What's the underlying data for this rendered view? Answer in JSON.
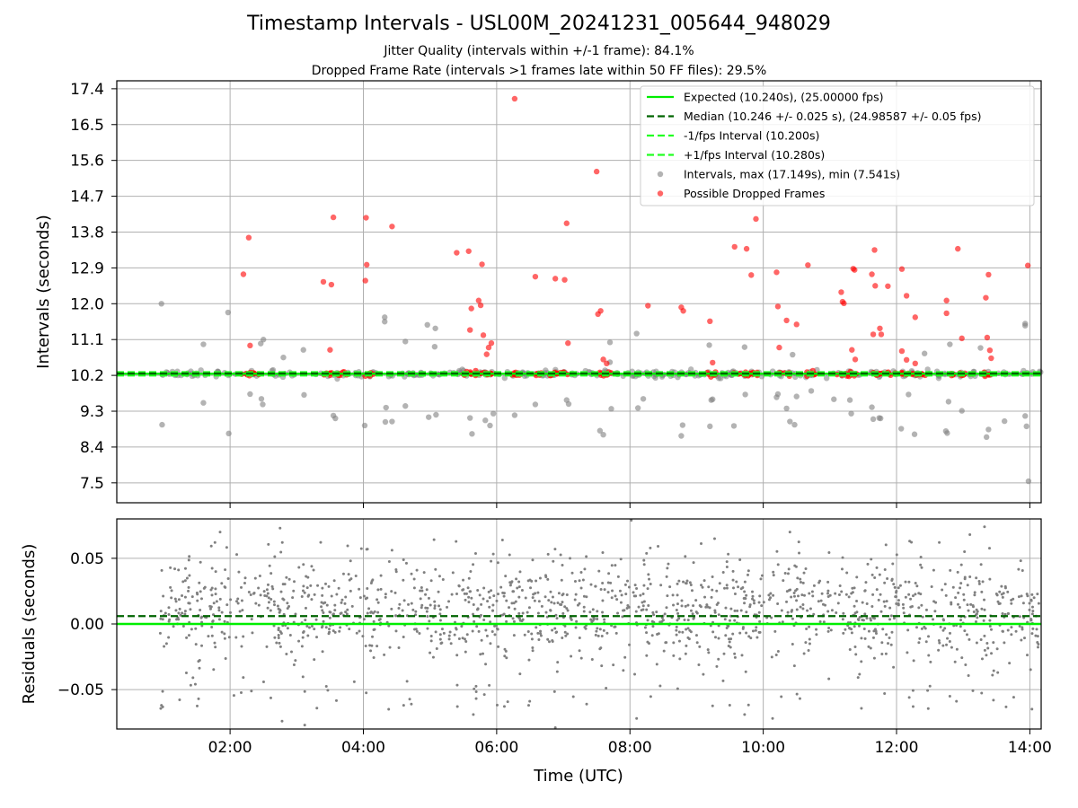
{
  "header": {
    "title": "Timestamp Intervals - USL00M_20241231_005644_948029",
    "subtitle_jitter": "Jitter Quality (intervals within +/-1 frame): 84.1%",
    "subtitle_dropped": "Dropped Frame Rate (intervals >1 frames late within 50 FF files): 29.5%"
  },
  "colors": {
    "expected": "#00ee00",
    "median": "#006400",
    "interval_bounds": "#22ff22",
    "intervals": "#808080",
    "dropped": "#ff0000",
    "residuals": "#808080",
    "grid": "#b0b0b0"
  },
  "chart_data": [
    {
      "type": "scatter",
      "ylabel": "Intervals (seconds)",
      "xlim_hours": [
        0.3,
        14.17
      ],
      "ylim": [
        7.0,
        17.6
      ],
      "yticks": [
        "7.5",
        "8.4",
        "9.3",
        "10.2",
        "11.1",
        "12.0",
        "12.9",
        "13.8",
        "14.7",
        "15.6",
        "16.5",
        "17.4"
      ],
      "grid": true,
      "legend_position": "top-right",
      "legend": [
        "Expected (10.240s), (25.00000 fps)",
        "Median (10.246 +/- 0.025 s), (24.98587 +/- 0.05 fps)",
        "-1/fps Interval (10.200s)",
        "+1/fps Interval (10.280s)",
        "Intervals, max (17.149s), min (7.541s)",
        "Possible Dropped Frames"
      ],
      "reference_lines": {
        "expected": 10.24,
        "median": 10.246,
        "minus_1_fps": 10.2,
        "plus_1_fps": 10.28
      },
      "time_range_hours": [
        0.95,
        14.17
      ],
      "dropped_frames": [
        {
          "x": 2.2,
          "y": 12.74
        },
        {
          "x": 2.28,
          "y": 13.66
        },
        {
          "x": 2.3,
          "y": 10.95
        },
        {
          "x": 3.4,
          "y": 12.55
        },
        {
          "x": 3.5,
          "y": 10.84
        },
        {
          "x": 3.52,
          "y": 12.48
        },
        {
          "x": 3.55,
          "y": 14.17
        },
        {
          "x": 4.03,
          "y": 12.58
        },
        {
          "x": 4.04,
          "y": 14.16
        },
        {
          "x": 4.05,
          "y": 12.98
        },
        {
          "x": 4.43,
          "y": 13.94
        },
        {
          "x": 5.4,
          "y": 13.28
        },
        {
          "x": 5.58,
          "y": 13.32
        },
        {
          "x": 5.6,
          "y": 11.34
        },
        {
          "x": 5.62,
          "y": 11.88
        },
        {
          "x": 5.73,
          "y": 12.08
        },
        {
          "x": 5.76,
          "y": 11.96
        },
        {
          "x": 5.78,
          "y": 12.99
        },
        {
          "x": 5.8,
          "y": 11.21
        },
        {
          "x": 5.85,
          "y": 10.73
        },
        {
          "x": 5.88,
          "y": 10.9
        },
        {
          "x": 5.92,
          "y": 11.01
        },
        {
          "x": 6.27,
          "y": 17.15
        },
        {
          "x": 6.58,
          "y": 12.68
        },
        {
          "x": 6.88,
          "y": 12.63
        },
        {
          "x": 7.02,
          "y": 12.6
        },
        {
          "x": 7.05,
          "y": 14.02
        },
        {
          "x": 7.07,
          "y": 11.01
        },
        {
          "x": 7.5,
          "y": 15.32
        },
        {
          "x": 7.52,
          "y": 11.74
        },
        {
          "x": 7.56,
          "y": 11.82
        },
        {
          "x": 7.6,
          "y": 10.6
        },
        {
          "x": 7.65,
          "y": 10.5
        },
        {
          "x": 8.27,
          "y": 11.95
        },
        {
          "x": 8.77,
          "y": 11.91
        },
        {
          "x": 8.8,
          "y": 11.82
        },
        {
          "x": 9.2,
          "y": 11.56
        },
        {
          "x": 9.24,
          "y": 10.52
        },
        {
          "x": 9.57,
          "y": 13.43
        },
        {
          "x": 9.75,
          "y": 13.38
        },
        {
          "x": 9.82,
          "y": 12.72
        },
        {
          "x": 9.89,
          "y": 14.13
        },
        {
          "x": 10.2,
          "y": 12.79
        },
        {
          "x": 10.22,
          "y": 11.93
        },
        {
          "x": 10.24,
          "y": 10.9
        },
        {
          "x": 10.35,
          "y": 11.58
        },
        {
          "x": 10.5,
          "y": 11.48
        },
        {
          "x": 10.67,
          "y": 12.97
        },
        {
          "x": 11.17,
          "y": 12.29
        },
        {
          "x": 11.19,
          "y": 12.05
        },
        {
          "x": 11.21,
          "y": 12.01
        },
        {
          "x": 11.33,
          "y": 10.84
        },
        {
          "x": 11.35,
          "y": 12.88
        },
        {
          "x": 11.37,
          "y": 12.85
        },
        {
          "x": 11.38,
          "y": 10.6
        },
        {
          "x": 11.63,
          "y": 12.74
        },
        {
          "x": 11.65,
          "y": 11.23
        },
        {
          "x": 11.67,
          "y": 13.35
        },
        {
          "x": 11.68,
          "y": 12.45
        },
        {
          "x": 11.75,
          "y": 11.38
        },
        {
          "x": 11.77,
          "y": 11.23
        },
        {
          "x": 11.87,
          "y": 12.44
        },
        {
          "x": 12.08,
          "y": 12.87
        },
        {
          "x": 12.08,
          "y": 10.81
        },
        {
          "x": 12.15,
          "y": 12.2
        },
        {
          "x": 12.15,
          "y": 10.59
        },
        {
          "x": 12.28,
          "y": 11.66
        },
        {
          "x": 12.28,
          "y": 10.5
        },
        {
          "x": 12.75,
          "y": 12.08
        },
        {
          "x": 12.75,
          "y": 11.76
        },
        {
          "x": 12.92,
          "y": 13.38
        },
        {
          "x": 12.98,
          "y": 11.13
        },
        {
          "x": 13.34,
          "y": 12.15
        },
        {
          "x": 13.36,
          "y": 11.15
        },
        {
          "x": 13.38,
          "y": 12.73
        },
        {
          "x": 13.4,
          "y": 10.83
        },
        {
          "x": 13.42,
          "y": 10.63
        },
        {
          "x": 13.97,
          "y": 12.96
        }
      ],
      "intervals_outliers": [
        {
          "x": 0.97,
          "y": 12.0
        },
        {
          "x": 0.98,
          "y": 8.96
        },
        {
          "x": 1.6,
          "y": 9.51
        },
        {
          "x": 1.6,
          "y": 10.98
        },
        {
          "x": 1.97,
          "y": 11.78
        },
        {
          "x": 1.98,
          "y": 8.74
        },
        {
          "x": 2.3,
          "y": 9.73
        },
        {
          "x": 2.46,
          "y": 11.0
        },
        {
          "x": 2.47,
          "y": 9.61
        },
        {
          "x": 2.49,
          "y": 9.47
        },
        {
          "x": 2.5,
          "y": 11.1
        },
        {
          "x": 2.8,
          "y": 10.65
        },
        {
          "x": 3.1,
          "y": 10.84
        },
        {
          "x": 3.11,
          "y": 9.71
        },
        {
          "x": 3.55,
          "y": 9.19
        },
        {
          "x": 3.58,
          "y": 9.12
        },
        {
          "x": 4.02,
          "y": 8.94
        },
        {
          "x": 4.32,
          "y": 11.55
        },
        {
          "x": 4.32,
          "y": 11.66
        },
        {
          "x": 4.33,
          "y": 9.03
        },
        {
          "x": 4.34,
          "y": 9.39
        },
        {
          "x": 4.43,
          "y": 9.04
        },
        {
          "x": 4.63,
          "y": 11.05
        },
        {
          "x": 4.63,
          "y": 9.43
        },
        {
          "x": 4.96,
          "y": 11.47
        },
        {
          "x": 4.98,
          "y": 9.15
        },
        {
          "x": 5.07,
          "y": 10.92
        },
        {
          "x": 5.08,
          "y": 11.38
        },
        {
          "x": 5.09,
          "y": 9.21
        },
        {
          "x": 5.6,
          "y": 9.13
        },
        {
          "x": 5.63,
          "y": 8.73
        },
        {
          "x": 5.83,
          "y": 9.07
        },
        {
          "x": 5.9,
          "y": 8.94
        },
        {
          "x": 5.95,
          "y": 9.24
        },
        {
          "x": 6.27,
          "y": 9.2
        },
        {
          "x": 6.58,
          "y": 9.47
        },
        {
          "x": 7.05,
          "y": 9.58
        },
        {
          "x": 7.08,
          "y": 9.48
        },
        {
          "x": 7.55,
          "y": 8.81
        },
        {
          "x": 7.6,
          "y": 8.71
        },
        {
          "x": 7.7,
          "y": 11.03
        },
        {
          "x": 7.72,
          "y": 9.36
        },
        {
          "x": 7.7,
          "y": 10.53
        },
        {
          "x": 8.1,
          "y": 11.25
        },
        {
          "x": 8.12,
          "y": 9.38
        },
        {
          "x": 8.2,
          "y": 9.61
        },
        {
          "x": 8.77,
          "y": 8.68
        },
        {
          "x": 8.79,
          "y": 8.95
        },
        {
          "x": 9.19,
          "y": 10.96
        },
        {
          "x": 9.2,
          "y": 8.92
        },
        {
          "x": 9.22,
          "y": 9.58
        },
        {
          "x": 9.24,
          "y": 9.6
        },
        {
          "x": 9.56,
          "y": 8.93
        },
        {
          "x": 9.72,
          "y": 10.91
        },
        {
          "x": 9.73,
          "y": 9.72
        },
        {
          "x": 10.2,
          "y": 9.65
        },
        {
          "x": 10.22,
          "y": 9.73
        },
        {
          "x": 10.35,
          "y": 9.37
        },
        {
          "x": 10.4,
          "y": 9.04
        },
        {
          "x": 10.44,
          "y": 10.72
        },
        {
          "x": 10.47,
          "y": 8.96
        },
        {
          "x": 10.5,
          "y": 9.67
        },
        {
          "x": 10.72,
          "y": 9.81
        },
        {
          "x": 11.06,
          "y": 9.6
        },
        {
          "x": 11.3,
          "y": 9.58
        },
        {
          "x": 11.32,
          "y": 9.24
        },
        {
          "x": 11.63,
          "y": 9.4
        },
        {
          "x": 11.65,
          "y": 9.1
        },
        {
          "x": 11.74,
          "y": 9.13
        },
        {
          "x": 11.76,
          "y": 9.12
        },
        {
          "x": 12.07,
          "y": 8.86
        },
        {
          "x": 12.18,
          "y": 9.72
        },
        {
          "x": 12.27,
          "y": 8.72
        },
        {
          "x": 12.42,
          "y": 10.75
        },
        {
          "x": 12.74,
          "y": 8.8
        },
        {
          "x": 12.76,
          "y": 8.75
        },
        {
          "x": 12.78,
          "y": 9.54
        },
        {
          "x": 12.8,
          "y": 10.98
        },
        {
          "x": 12.98,
          "y": 9.31
        },
        {
          "x": 13.26,
          "y": 10.89
        },
        {
          "x": 13.35,
          "y": 8.65
        },
        {
          "x": 13.38,
          "y": 8.84
        },
        {
          "x": 13.62,
          "y": 9.05
        },
        {
          "x": 13.93,
          "y": 11.5
        },
        {
          "x": 13.93,
          "y": 11.45
        },
        {
          "x": 13.93,
          "y": 9.18
        },
        {
          "x": 13.95,
          "y": 8.92
        },
        {
          "x": 13.98,
          "y": 7.54
        }
      ]
    },
    {
      "type": "scatter",
      "ylabel": "Residuals (seconds)",
      "xlabel": "Time (UTC)",
      "xlim_hours": [
        0.3,
        14.17
      ],
      "ylim": [
        -0.08,
        0.08
      ],
      "yticks": [
        "−0.05",
        "0.00",
        "0.05"
      ],
      "ytick_values": [
        -0.05,
        0.0,
        0.05
      ],
      "xticks": [
        "02:00",
        "04:00",
        "06:00",
        "08:00",
        "10:00",
        "12:00",
        "14:00"
      ],
      "xtick_values": [
        2,
        4,
        6,
        8,
        10,
        12,
        14
      ],
      "grid": true,
      "reference_lines": {
        "zero": 0.0,
        "median_offset": 0.006
      },
      "residual_outliers": [
        {
          "x": 0.97,
          "y": -0.062
        },
        {
          "x": 1.85,
          "y": 0.07
        },
        {
          "x": 2.75,
          "y": 0.073
        },
        {
          "x": 2.78,
          "y": -0.074
        },
        {
          "x": 3.12,
          "y": -0.077
        },
        {
          "x": 4.72,
          "y": -0.061
        },
        {
          "x": 5.65,
          "y": -0.069
        },
        {
          "x": 6.48,
          "y": -0.062
        },
        {
          "x": 6.88,
          "y": -0.079
        },
        {
          "x": 7.35,
          "y": -0.061
        },
        {
          "x": 8.02,
          "y": 0.079
        },
        {
          "x": 8.1,
          "y": -0.072
        },
        {
          "x": 9.27,
          "y": 0.065
        },
        {
          "x": 9.72,
          "y": -0.069
        },
        {
          "x": 10.14,
          "y": -0.072
        },
        {
          "x": 10.4,
          "y": 0.07
        },
        {
          "x": 11.82,
          "y": -0.053
        },
        {
          "x": 12.8,
          "y": -0.055
        },
        {
          "x": 13.1,
          "y": 0.068
        },
        {
          "x": 13.32,
          "y": 0.074
        }
      ]
    }
  ]
}
